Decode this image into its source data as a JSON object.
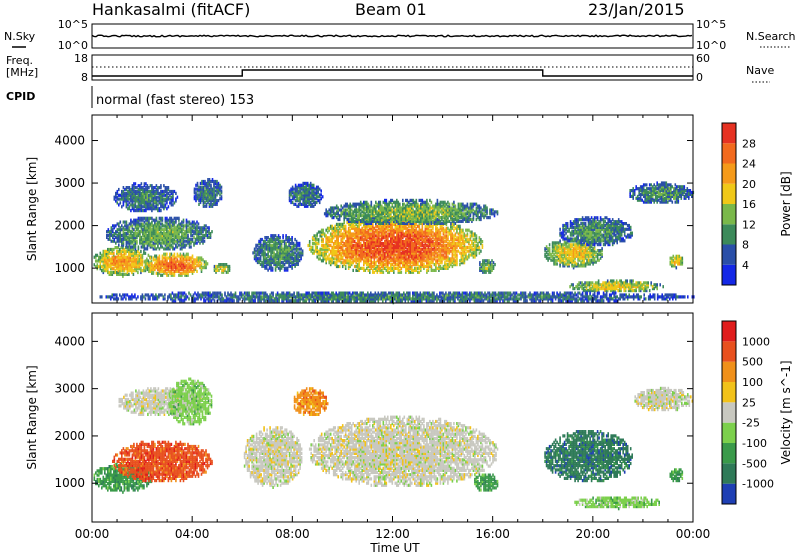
{
  "header": {
    "station": "Hankasalmi (fitACF)",
    "beam": "Beam 01",
    "date": "23/Jan/2015"
  },
  "noise_panel": {
    "left_label": "N.Sky",
    "right_label": "N.Search",
    "left_ticks": [
      "10^5",
      "10^0"
    ],
    "right_ticks": [
      "10^5",
      "10^0"
    ]
  },
  "freq_panel": {
    "left_label_line1": "Freq.",
    "left_label_line2": "[MHz]",
    "right_label": "Nave",
    "left_ticks": [
      "18",
      "8"
    ],
    "right_ticks": [
      "60",
      "0"
    ]
  },
  "cpid": {
    "label": "CPID",
    "value": "normal (fast stereo) 153"
  },
  "chart_data": [
    {
      "type": "heatmap",
      "name": "power",
      "ylabel": "Slant Range [km]",
      "xlabel": "Time UT",
      "xlim": [
        "00:00",
        "24:00"
      ],
      "ylim": [
        180,
        4600
      ],
      "yticks": [
        1000,
        2000,
        3000,
        4000
      ],
      "xticks": [
        "00:00",
        "04:00",
        "08:00",
        "12:00",
        "16:00",
        "20:00",
        "00:00"
      ],
      "colorbar": {
        "label": "Power [dB]",
        "ticks": [
          "4",
          "8",
          "12",
          "16",
          "20",
          "24",
          "28"
        ],
        "colors": [
          "#1428e6",
          "#2a4fa8",
          "#3c8a5a",
          "#7ab84a",
          "#f0c818",
          "#f59a1a",
          "#f26a1e",
          "#e63222"
        ]
      },
      "blobs": [
        {
          "t0": 0.0,
          "t1": 2.4,
          "r0": 800,
          "r1": 1500,
          "level": 0.7
        },
        {
          "t0": 2.0,
          "t1": 4.6,
          "r0": 780,
          "r1": 1350,
          "level": 0.85
        },
        {
          "t0": 0.5,
          "t1": 4.8,
          "r0": 1400,
          "r1": 2200,
          "level": 0.4
        },
        {
          "t0": 0.8,
          "t1": 3.4,
          "r0": 2300,
          "r1": 3000,
          "level": 0.3
        },
        {
          "t0": 4.0,
          "t1": 5.2,
          "r0": 2400,
          "r1": 3100,
          "level": 0.3
        },
        {
          "t0": 4.8,
          "t1": 5.5,
          "r0": 850,
          "r1": 1100,
          "level": 0.6
        },
        {
          "t0": 6.4,
          "t1": 8.4,
          "r0": 900,
          "r1": 1800,
          "level": 0.35
        },
        {
          "t0": 8.6,
          "t1": 15.6,
          "r0": 850,
          "r1": 2200,
          "level": 0.9
        },
        {
          "t0": 9.2,
          "t1": 16.2,
          "r0": 2000,
          "r1": 2600,
          "level": 0.45
        },
        {
          "t0": 7.8,
          "t1": 9.2,
          "r0": 2400,
          "r1": 3000,
          "level": 0.3
        },
        {
          "t0": 15.4,
          "t1": 16.1,
          "r0": 850,
          "r1": 1200,
          "level": 0.45
        },
        {
          "t0": 18.0,
          "t1": 20.4,
          "r0": 1000,
          "r1": 1700,
          "level": 0.6
        },
        {
          "t0": 18.6,
          "t1": 21.6,
          "r0": 1500,
          "r1": 2200,
          "level": 0.35
        },
        {
          "t0": 19.0,
          "t1": 22.8,
          "r0": 420,
          "r1": 700,
          "level": 0.6
        },
        {
          "t0": 21.4,
          "t1": 24.0,
          "r0": 2500,
          "r1": 3000,
          "level": 0.35
        },
        {
          "t0": 23.0,
          "t1": 23.6,
          "r0": 1000,
          "r1": 1300,
          "level": 0.65
        },
        {
          "t0": 0.0,
          "t1": 24.0,
          "r0": 180,
          "r1": 450,
          "level": 0.3
        }
      ]
    },
    {
      "type": "heatmap",
      "name": "velocity",
      "ylabel": "Slant Range [km]",
      "xlabel": "Time UT",
      "xlim": [
        "00:00",
        "24:00"
      ],
      "ylim": [
        180,
        4600
      ],
      "yticks": [
        1000,
        2000,
        3000,
        4000
      ],
      "xticks": [
        "00:00",
        "04:00",
        "08:00",
        "12:00",
        "16:00",
        "20:00",
        "00:00"
      ],
      "colorbar": {
        "label": "Velocity [m s^-1]",
        "ticks": [
          "1000",
          "500",
          "100",
          "25",
          "-25",
          "-100",
          "-500",
          "-1000"
        ],
        "colors": [
          "#1e3fb4",
          "#2f7a58",
          "#3a9a4a",
          "#7cd04c",
          "#c8c8c0",
          "#f2c21a",
          "#f0901a",
          "#e8501e",
          "#e01c1c"
        ]
      },
      "blobs": [
        {
          "t0": 0.0,
          "t1": 2.4,
          "r0": 800,
          "r1": 1400,
          "cls": 6
        },
        {
          "t0": 0.8,
          "t1": 4.8,
          "r0": 1000,
          "r1": 1900,
          "cls": 1
        },
        {
          "t0": 1.0,
          "t1": 4.4,
          "r0": 2400,
          "r1": 3000,
          "cls": 4
        },
        {
          "t0": 3.0,
          "t1": 4.8,
          "r0": 2200,
          "r1": 3200,
          "cls": 5
        },
        {
          "t0": 6.0,
          "t1": 8.4,
          "r0": 900,
          "r1": 2200,
          "cls": 4
        },
        {
          "t0": 8.0,
          "t1": 9.4,
          "r0": 2400,
          "r1": 3000,
          "cls": 2
        },
        {
          "t0": 8.6,
          "t1": 16.2,
          "r0": 900,
          "r1": 2400,
          "cls": 4
        },
        {
          "t0": 15.2,
          "t1": 16.2,
          "r0": 800,
          "r1": 1200,
          "cls": 6
        },
        {
          "t0": 18.0,
          "t1": 21.6,
          "r0": 1000,
          "r1": 2100,
          "cls": 7
        },
        {
          "t0": 19.2,
          "t1": 22.8,
          "r0": 450,
          "r1": 700,
          "cls": 5
        },
        {
          "t0": 21.6,
          "t1": 24.0,
          "r0": 2500,
          "r1": 3000,
          "cls": 4
        },
        {
          "t0": 23.0,
          "t1": 23.6,
          "r0": 1000,
          "r1": 1300,
          "cls": 6
        }
      ]
    }
  ]
}
